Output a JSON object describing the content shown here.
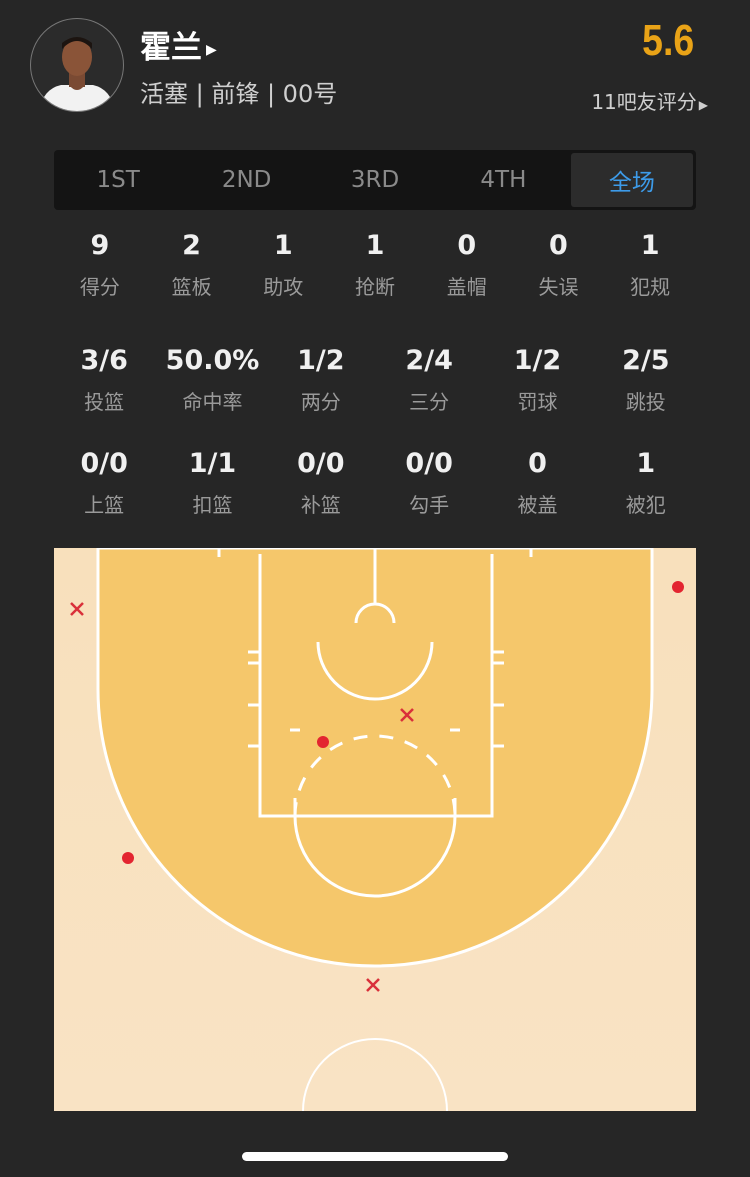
{
  "player": {
    "name": "霍兰",
    "info": "活塞 | 前锋 | 00号",
    "rating_score": "5.6",
    "rating_label": "11吧友评分",
    "score_color": "#e9a317"
  },
  "tabs": [
    {
      "label": "1ST",
      "active": false
    },
    {
      "label": "2ND",
      "active": false
    },
    {
      "label": "3RD",
      "active": false
    },
    {
      "label": "4TH",
      "active": false
    },
    {
      "label": "全场",
      "active": true
    }
  ],
  "stats_row1": [
    {
      "value": "9",
      "label": "得分"
    },
    {
      "value": "2",
      "label": "篮板"
    },
    {
      "value": "1",
      "label": "助攻"
    },
    {
      "value": "1",
      "label": "抢断"
    },
    {
      "value": "0",
      "label": "盖帽"
    },
    {
      "value": "0",
      "label": "失误"
    },
    {
      "value": "1",
      "label": "犯规"
    }
  ],
  "stats_row2": [
    {
      "value": "3/6",
      "label": "投篮"
    },
    {
      "value": "50.0%",
      "label": "命中率"
    },
    {
      "value": "1/2",
      "label": "两分"
    },
    {
      "value": "2/4",
      "label": "三分"
    },
    {
      "value": "1/2",
      "label": "罚球"
    },
    {
      "value": "2/5",
      "label": "跳投"
    }
  ],
  "stats_row3": [
    {
      "value": "0/0",
      "label": "上篮"
    },
    {
      "value": "1/1",
      "label": "扣篮"
    },
    {
      "value": "0/0",
      "label": "补篮"
    },
    {
      "value": "0/0",
      "label": "勾手"
    },
    {
      "value": "0",
      "label": "被盖"
    },
    {
      "value": "1",
      "label": "被犯"
    }
  ],
  "shot_chart": {
    "shots": [
      "missed",
      "made",
      "missed",
      "made",
      "made",
      "missed"
    ],
    "made_color": "#e32530",
    "missed_color": "#d9303a",
    "court_inner_color": "#f5c76b",
    "court_outer_color": "#f8e1c0"
  }
}
